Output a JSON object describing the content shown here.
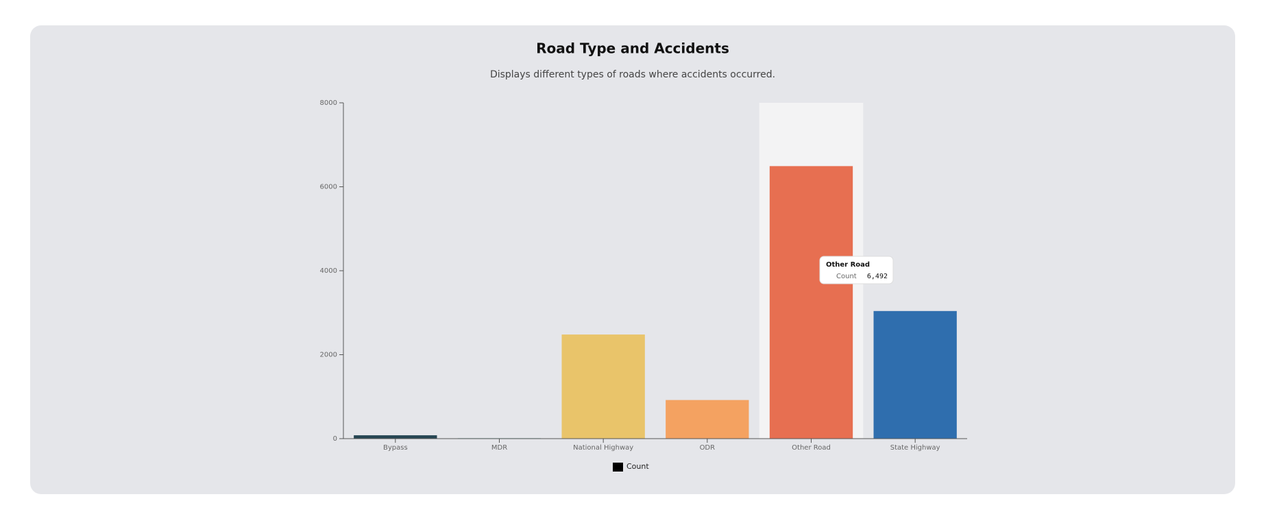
{
  "chart_data": {
    "type": "bar",
    "title": "Road Type and Accidents",
    "subtitle": "Displays different types of roads where accidents occurred.",
    "categories": [
      "Bypass",
      "MDR",
      "National Highway",
      "ODR",
      "Other Road",
      "State Highway"
    ],
    "series": [
      {
        "name": "Count",
        "color": "#000000",
        "colors": [
          "#264653",
          "#2a9d8f",
          "#e9c46a",
          "#f4a261",
          "#e76f51",
          "#2f6eae"
        ],
        "values": [
          80,
          10,
          2480,
          920,
          6492,
          3040
        ],
        "value_labels": [
          null,
          null,
          null,
          null,
          "6,492",
          null
        ]
      }
    ],
    "ylim": [
      0,
      8000
    ],
    "yticks": [
      0,
      2000,
      4000,
      6000,
      8000
    ],
    "grid": false
  }
}
